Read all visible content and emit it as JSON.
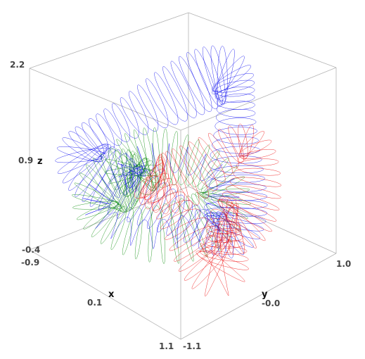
{
  "chart_data": {
    "type": "line",
    "subtype": "3d-parametric-curves",
    "title": "",
    "axes": {
      "x": {
        "label": "x",
        "ticks": [
          "-0.9",
          "0.1",
          "1.1"
        ],
        "range": [
          -0.9,
          1.1
        ]
      },
      "y": {
        "label": "y",
        "ticks": [
          "-1.1",
          "-0.0",
          "1.0"
        ],
        "range": [
          -1.1,
          1.0
        ]
      },
      "z": {
        "label": "z",
        "ticks": [
          "-0.4",
          "0.9",
          "2.2"
        ],
        "range": [
          -0.4,
          2.2
        ]
      }
    },
    "series": [
      {
        "color": "#0000ee"
      },
      {
        "color": "#008800"
      },
      {
        "color": "#ee0000"
      }
    ],
    "box": true,
    "grid": false,
    "legend": "none"
  }
}
